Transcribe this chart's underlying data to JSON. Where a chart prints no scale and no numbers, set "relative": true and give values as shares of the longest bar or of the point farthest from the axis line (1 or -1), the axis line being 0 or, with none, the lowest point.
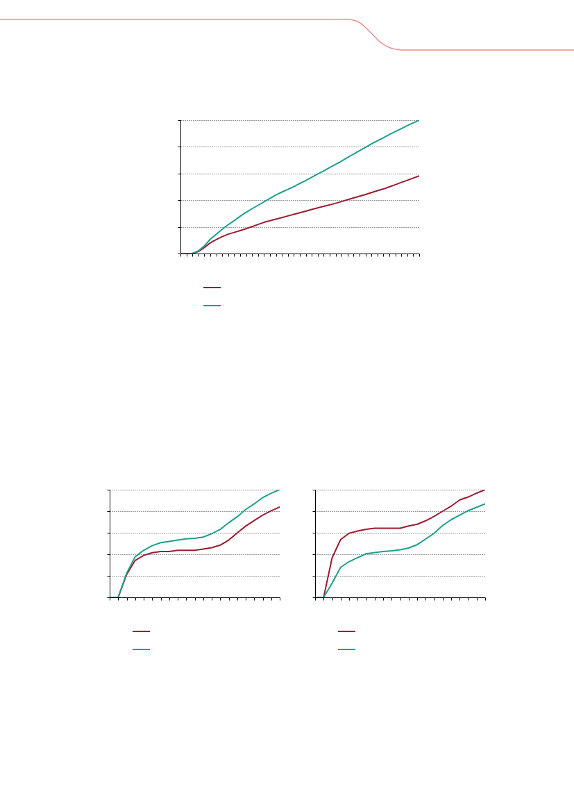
{
  "chart_data": [
    {
      "type": "line",
      "relative": true,
      "grid": "y",
      "categories": [
        null,
        null,
        null,
        null,
        null,
        null,
        null,
        null,
        null,
        null,
        null,
        null,
        null,
        null,
        null,
        null,
        null,
        null,
        null,
        null,
        null,
        null,
        null,
        null,
        null,
        null,
        null,
        null,
        null,
        null,
        null,
        null,
        null,
        null,
        null,
        null,
        null,
        null,
        null,
        null,
        null
      ],
      "series": [
        {
          "color": "#9b1b30",
          "values": [
            0,
            0,
            0,
            0.015,
            0.045,
            0.08,
            0.105,
            0.127,
            0.145,
            0.158,
            0.172,
            0.186,
            0.202,
            0.218,
            0.234,
            0.246,
            0.258,
            0.27,
            0.282,
            0.294,
            0.306,
            0.318,
            0.331,
            0.342,
            0.354,
            0.365,
            0.377,
            0.39,
            0.404,
            0.417,
            0.43,
            0.443,
            0.457,
            0.471,
            0.484,
            0.5,
            0.516,
            0.533,
            0.549,
            0.566,
            0.582
          ]
        },
        {
          "color": "#1a9e8f",
          "values": [
            0,
            0,
            0,
            0.02,
            0.057,
            0.108,
            0.145,
            0.182,
            0.216,
            0.247,
            0.279,
            0.309,
            0.336,
            0.362,
            0.388,
            0.414,
            0.439,
            0.461,
            0.481,
            0.502,
            0.526,
            0.548,
            0.572,
            0.597,
            0.619,
            0.645,
            0.669,
            0.693,
            0.721,
            0.745,
            0.771,
            0.796,
            0.822,
            0.846,
            0.868,
            0.892,
            0.915,
            0.937,
            0.959,
            0.98,
            1
          ]
        }
      ]
    },
    {
      "type": "line",
      "relative": true,
      "grid": "y",
      "categories": [
        null,
        null,
        null,
        null,
        null,
        null,
        null,
        null,
        null,
        null,
        null,
        null,
        null,
        null,
        null,
        null,
        null,
        null,
        null,
        null,
        null
      ],
      "series": [
        {
          "color": "#9b1b30",
          "values": [
            0,
            0,
            0.213,
            0.343,
            0.39,
            0.414,
            0.426,
            0.426,
            0.437,
            0.437,
            0.437,
            0.449,
            0.461,
            0.485,
            0.532,
            0.598,
            0.662,
            0.714,
            0.764,
            0.804,
            0.839
          ]
        },
        {
          "color": "#1a9e8f",
          "values": [
            0,
            0,
            0.225,
            0.378,
            0.437,
            0.48,
            0.508,
            0.52,
            0.532,
            0.544,
            0.548,
            0.56,
            0.591,
            0.631,
            0.693,
            0.749,
            0.816,
            0.868,
            0.927,
            0.967,
            1
          ]
        }
      ]
    },
    {
      "type": "line",
      "relative": true,
      "grid": "y",
      "categories": [
        null,
        null,
        null,
        null,
        null,
        null,
        null,
        null,
        null,
        null,
        null,
        null,
        null,
        null,
        null,
        null,
        null,
        null,
        null,
        null,
        null
      ],
      "series": [
        {
          "color": "#9b1b30",
          "values": [
            0,
            0,
            0.368,
            0.537,
            0.595,
            0.616,
            0.632,
            0.642,
            0.642,
            0.642,
            0.642,
            0.663,
            0.679,
            0.711,
            0.753,
            0.8,
            0.847,
            0.905,
            0.932,
            0.968,
            1
          ]
        },
        {
          "color": "#1a9e8f",
          "values": [
            0,
            0,
            0.132,
            0.279,
            0.332,
            0.368,
            0.405,
            0.416,
            0.426,
            0.432,
            0.442,
            0.458,
            0.489,
            0.542,
            0.595,
            0.668,
            0.721,
            0.763,
            0.805,
            0.837,
            0.868
          ]
        }
      ]
    }
  ]
}
